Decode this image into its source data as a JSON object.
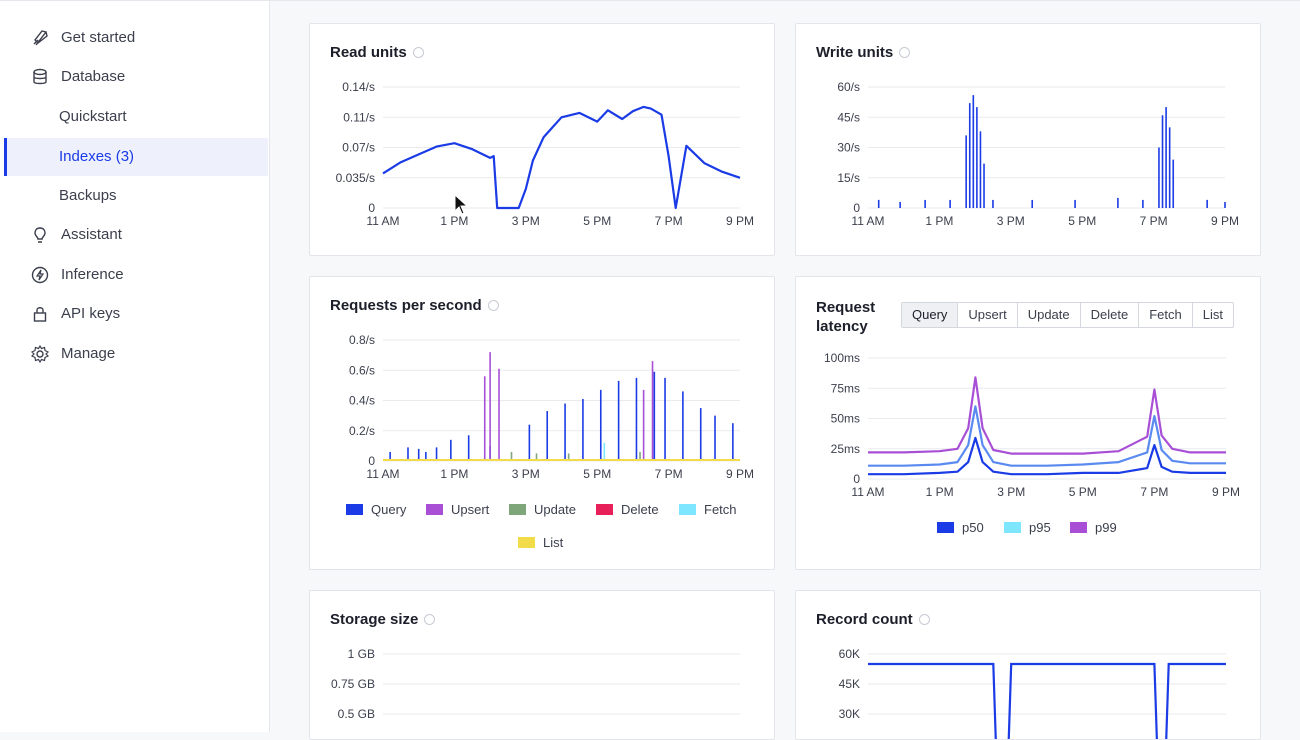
{
  "sidebar": {
    "items": [
      {
        "label": "Get started",
        "icon": "rocket-icon"
      },
      {
        "label": "Database",
        "icon": "database-icon"
      },
      {
        "label": "Quickstart"
      },
      {
        "label": "Indexes (3)"
      },
      {
        "label": "Backups"
      },
      {
        "label": "Assistant",
        "icon": "lightbulb-icon"
      },
      {
        "label": "Inference",
        "icon": "lightning-icon"
      },
      {
        "label": "API keys",
        "icon": "lock-icon"
      },
      {
        "label": "Manage",
        "icon": "gear-icon"
      }
    ],
    "active_index": 3
  },
  "colors": {
    "accent": "#1a3be6",
    "query": "#1a3be6",
    "upsert": "#a84fd6",
    "update": "#7fa67a",
    "delete": "#e8205a",
    "fetch": "#7fe6ff",
    "list": "#f2dc4a",
    "p50": "#1a3be6",
    "p95": "#5a8af0",
    "p99": "#a84fd6"
  },
  "cards": {
    "read_units": {
      "title": "Read units"
    },
    "write_units": {
      "title": "Write units"
    },
    "requests": {
      "title": "Requests per second",
      "legend": [
        "Query",
        "Upsert",
        "Update",
        "Delete",
        "Fetch",
        "List"
      ]
    },
    "latency": {
      "title_line1": "Request",
      "title_line2": "latency",
      "tabs": [
        "Query",
        "Upsert",
        "Update",
        "Delete",
        "Fetch",
        "List"
      ],
      "selected_tab": "Query",
      "legend": [
        "p50",
        "p95",
        "p99"
      ]
    },
    "storage": {
      "title": "Storage size"
    },
    "records": {
      "title": "Record count"
    }
  },
  "chart_data": [
    {
      "type": "line",
      "title": "Read units",
      "x_ticks": [
        "11 AM",
        "1 PM",
        "3 PM",
        "5 PM",
        "7 PM",
        "9 PM"
      ],
      "y_ticks": [
        "0",
        "0.035/s",
        "0.07/s",
        "0.11/s",
        "0.14/s"
      ],
      "ylim": [
        0,
        0.14
      ],
      "series": [
        {
          "x_hours": [
            11,
            11.5,
            12,
            12.5,
            13,
            13.5,
            14,
            14.1,
            14.2,
            14.8,
            15,
            15.2,
            15.5,
            16,
            16.5,
            17,
            17.3,
            17.7,
            18,
            18.3,
            18.5,
            18.8,
            19,
            19.2,
            19.5,
            20,
            20.5,
            21
          ],
          "values": [
            0.04,
            0.053,
            0.062,
            0.071,
            0.075,
            0.068,
            0.058,
            0.06,
            0.0,
            0.0,
            0.022,
            0.055,
            0.082,
            0.105,
            0.11,
            0.1,
            0.113,
            0.103,
            0.112,
            0.117,
            0.115,
            0.108,
            0.06,
            0.0,
            0.072,
            0.052,
            0.042,
            0.035
          ]
        }
      ],
      "grid": true
    },
    {
      "type": "bar",
      "title": "Write units",
      "x_ticks": [
        "11 AM",
        "1 PM",
        "3 PM",
        "5 PM",
        "7 PM",
        "9 PM"
      ],
      "y_ticks": [
        "0",
        "15/s",
        "30/s",
        "45/s",
        "60/s"
      ],
      "ylim": [
        0,
        60
      ],
      "x_hours": [
        11.3,
        11.9,
        12.6,
        13.3,
        13.75,
        13.85,
        13.95,
        14.05,
        14.15,
        14.25,
        14.5,
        15.6,
        16.8,
        18.0,
        18.7,
        19.15,
        19.25,
        19.35,
        19.45,
        19.55,
        20.5,
        21.0
      ],
      "values": [
        4,
        3,
        4,
        4,
        36,
        52,
        56,
        50,
        38,
        22,
        4,
        4,
        4,
        5,
        4,
        30,
        46,
        50,
        40,
        24,
        4,
        3
      ],
      "grid": true
    },
    {
      "type": "bar",
      "title": "Requests per second",
      "x_ticks": [
        "11 AM",
        "1 PM",
        "3 PM",
        "5 PM",
        "7 PM",
        "9 PM"
      ],
      "y_ticks": [
        "0",
        "0.2/s",
        "0.4/s",
        "0.6/s",
        "0.8/s"
      ],
      "ylim": [
        0,
        0.8
      ],
      "series": [
        {
          "name": "Query",
          "x_hours": [
            11.2,
            11.7,
            12.0,
            12.2,
            12.5,
            12.9,
            13.4,
            14.0,
            15.1,
            15.6,
            16.1,
            16.6,
            17.1,
            17.6,
            18.1,
            18.6,
            18.9,
            19.4,
            19.9,
            20.3,
            20.8
          ],
          "values": [
            0.06,
            0.09,
            0.08,
            0.06,
            0.09,
            0.14,
            0.17,
            0.1,
            0.24,
            0.33,
            0.38,
            0.41,
            0.47,
            0.53,
            0.55,
            0.59,
            0.55,
            0.46,
            0.35,
            0.3,
            0.25
          ]
        },
        {
          "name": "Upsert",
          "x_hours": [
            13.85,
            14.0,
            14.25,
            18.3,
            18.55
          ],
          "values": [
            0.56,
            0.72,
            0.61,
            0.47,
            0.66
          ]
        },
        {
          "name": "Update",
          "x_hours": [
            14.6,
            15.3,
            16.2,
            18.2
          ],
          "values": [
            0.06,
            0.05,
            0.05,
            0.06
          ]
        },
        {
          "name": "Delete",
          "x_hours": [],
          "values": []
        },
        {
          "name": "Fetch",
          "x_hours": [
            17.2
          ],
          "values": [
            0.12
          ]
        },
        {
          "name": "List",
          "x_hours": [
            11,
            21
          ],
          "values": [
            0.01,
            0.01
          ]
        }
      ],
      "grid": true
    },
    {
      "type": "line",
      "title": "Request latency",
      "x_ticks": [
        "11 AM",
        "1 PM",
        "3 PM",
        "5 PM",
        "7 PM",
        "9 PM"
      ],
      "y_ticks": [
        "0",
        "25ms",
        "50ms",
        "75ms",
        "100ms"
      ],
      "ylim": [
        0,
        100
      ],
      "series": [
        {
          "name": "p50",
          "x_hours": [
            11,
            12,
            13,
            13.5,
            13.8,
            14,
            14.2,
            14.5,
            15,
            16,
            17,
            18,
            18.8,
            19,
            19.2,
            19.5,
            20,
            21
          ],
          "values": [
            4,
            4,
            5,
            6,
            14,
            34,
            14,
            6,
            4,
            4,
            5,
            5,
            9,
            28,
            10,
            6,
            5,
            5
          ]
        },
        {
          "name": "p95",
          "x_hours": [
            11,
            12,
            13,
            13.5,
            13.8,
            14,
            14.2,
            14.5,
            15,
            16,
            17,
            18,
            18.8,
            19,
            19.2,
            19.5,
            20,
            21
          ],
          "values": [
            11,
            11,
            12,
            14,
            28,
            60,
            28,
            14,
            11,
            11,
            12,
            14,
            22,
            52,
            24,
            15,
            13,
            13
          ]
        },
        {
          "name": "p99",
          "x_hours": [
            11,
            12,
            13,
            13.5,
            13.8,
            14,
            14.2,
            14.5,
            15,
            16,
            17,
            18,
            18.8,
            19,
            19.2,
            19.5,
            20,
            21
          ],
          "values": [
            22,
            22,
            23,
            25,
            42,
            84,
            42,
            24,
            21,
            21,
            21,
            23,
            35,
            74,
            36,
            25,
            22,
            22
          ]
        }
      ],
      "grid": true
    },
    {
      "type": "line",
      "title": "Storage size",
      "y_ticks": [
        "1 GB",
        "0.75 GB",
        "0.5 GB"
      ],
      "ylim": [
        0,
        1
      ],
      "series": [],
      "grid": true
    },
    {
      "type": "line",
      "title": "Record count",
      "y_ticks": [
        "60K",
        "45K",
        "30K"
      ],
      "ylim": [
        0,
        60000
      ],
      "series": [
        {
          "x_hours": [
            11,
            14.5,
            14.6,
            14.9,
            15.0,
            19.0,
            19.1,
            19.3,
            19.4,
            21
          ],
          "values": [
            55000,
            55000,
            0,
            0,
            55000,
            55000,
            0,
            0,
            55000,
            55000
          ]
        }
      ],
      "grid": true
    }
  ]
}
